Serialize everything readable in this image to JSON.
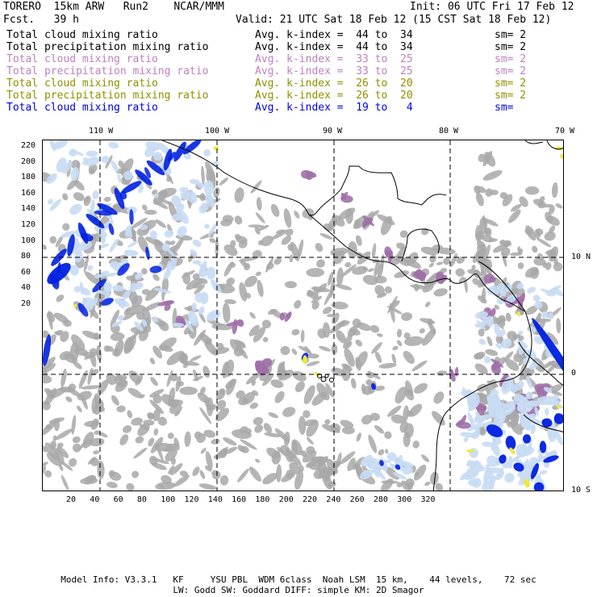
{
  "header": {
    "model": "TORERO  15km ARW   Run2    NCAR/MMM",
    "init": "Init: 06 UTC Fri 17 Feb 12",
    "fcst": "Fcst.   39 h",
    "valid": "Valid: 21 UTC Sat 18 Feb 12 (15 CST Sat 18 Feb 12)"
  },
  "legend": [
    {
      "name": "Total cloud mixing ratio",
      "avg": "Avg. k-index =  44 to  34",
      "sm": "sm= 2",
      "color": "#000000"
    },
    {
      "name": "Total precipitation mixing ratio",
      "avg": "Avg. k-index =  44 to  34",
      "sm": "sm= 2",
      "color": "#000000"
    },
    {
      "name": "Total cloud mixing ratio",
      "avg": "Avg. k-index =  33 to  25",
      "sm": "sm= 2",
      "color": "#c080c0"
    },
    {
      "name": "Total precipitation mixing ratio",
      "avg": "Avg. k-index =  33 to  25",
      "sm": "sm= 2",
      "color": "#c080c0"
    },
    {
      "name": "Total cloud mixing ratio",
      "avg": "Avg. k-index =  26 to  20",
      "sm": "sm= 2",
      "color": "#909000"
    },
    {
      "name": "Total precipitation mixing ratio",
      "avg": "Avg. k-index =  26 to  20",
      "sm": "sm= 2",
      "color": "#909000"
    },
    {
      "name": "Total cloud mixing ratio",
      "avg": "Avg. k-index =  19 to   4",
      "sm": "sm=",
      "color": "#0000e0"
    }
  ],
  "map": {
    "lon_labels": [
      "110 W",
      "100 W",
      "90 W",
      "80 W",
      "70 W"
    ],
    "lat_labels": [
      "10 N",
      "0",
      "10 S"
    ],
    "y_ticks": [
      "220",
      "200",
      "180",
      "160",
      "140",
      "120",
      "100",
      "80",
      "60",
      "40",
      "20"
    ],
    "x_ticks": [
      "20",
      "40",
      "60",
      "80",
      "100",
      "120",
      "140",
      "160",
      "180",
      "200",
      "220",
      "240",
      "260",
      "280",
      "300",
      "320"
    ],
    "colors": {
      "gray": "#a8a8a8",
      "purple": "#a070a8",
      "light_blue": "#c8dcf4",
      "blue": "#0020e0",
      "yellow": "#f0e840"
    }
  },
  "footer": {
    "line1": "Model Info: V3.3.1   KF     YSU PBL  WDM 6class  Noah LSM  15 km,    44 levels,    72 sec",
    "line2": "LW: Godd SW: Goddard DIFF: simple KM: 2D Smagor"
  }
}
